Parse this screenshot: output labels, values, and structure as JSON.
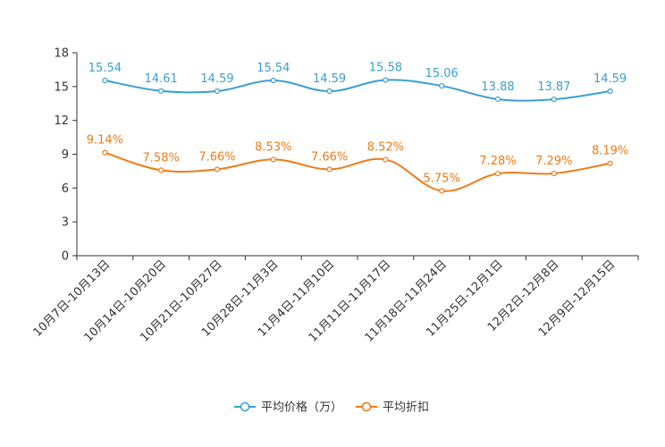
{
  "chart_data": {
    "type": "line",
    "title": "",
    "xlabel": "",
    "ylabel": "",
    "ylim": [
      0,
      18
    ],
    "yticks": [
      0,
      3,
      6,
      9,
      12,
      15,
      18
    ],
    "grid": false,
    "legend_position": "bottom-center",
    "categories": [
      "10月7日-10月13日",
      "10月14日-10月20日",
      "10月21日-10月27日",
      "10月28日-11月3日",
      "11月4日-11月10日",
      "11月11日-11月17日",
      "11月18日-11月24日",
      "11月25日-12月1日",
      "12月2日-12月8日",
      "12月9日-12月15日"
    ],
    "series": [
      {
        "name": "平均价格（万）",
        "color": "#3a9fd0",
        "values": [
          15.54,
          14.61,
          14.59,
          15.54,
          14.59,
          15.58,
          15.06,
          13.88,
          13.87,
          14.59
        ],
        "labels": [
          "15.54",
          "14.61",
          "14.59",
          "15.54",
          "14.59",
          "15.58",
          "15.06",
          "13.88",
          "13.87",
          "14.59"
        ]
      },
      {
        "name": "平均折扣",
        "color": "#f07a16",
        "values": [
          9.14,
          7.58,
          7.66,
          8.53,
          7.66,
          8.52,
          5.75,
          7.28,
          7.29,
          8.19
        ],
        "labels": [
          "9.14%",
          "7.58%",
          "7.66%",
          "8.53%",
          "7.66%",
          "8.52%",
          "5.75%",
          "7.28%",
          "7.29%",
          "8.19%"
        ]
      }
    ]
  }
}
